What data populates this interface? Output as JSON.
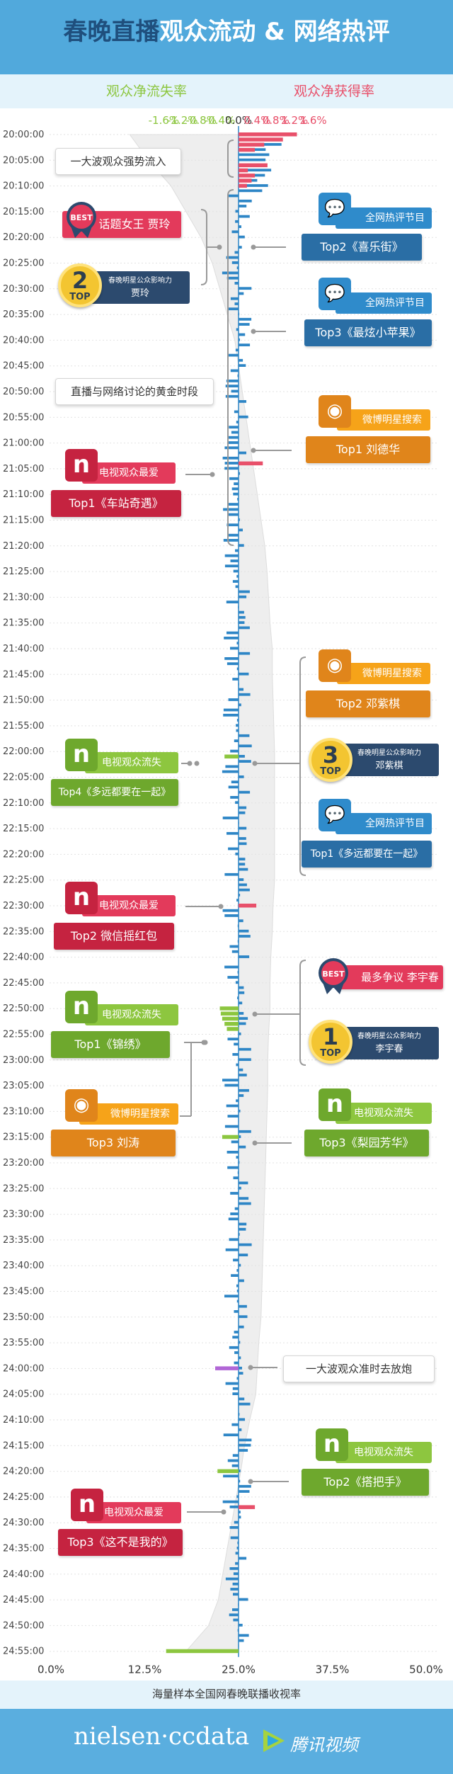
{
  "header": {
    "title_part1": "春晚直播",
    "title_part2": "观众流动 & 网络热评",
    "loss_label": "观众净流失率",
    "gain_label": "观众净获得率"
  },
  "footer": {
    "axis_label": "海量样本全国网春晚联播收视率",
    "nielsen_logo": "nielsen·ccdata",
    "tencent_logo": "腾讯视频"
  },
  "colors": {
    "header_bg": "#51a9dc",
    "loss_bar": "#8cc63f",
    "gain_bar": "#e8506a",
    "rating_bar": "#2e86c6",
    "rating_area": "#eeeeee",
    "purple_bar": "#b166d6"
  },
  "annotations": {
    "wave_in": "一大波观众强势流入",
    "golden_period": "直播与网络讨论的黄金时段",
    "wave_out": "一大波观众准时去放炮",
    "best_topic_label": "话题女王 贾玲",
    "best_topic_badge": "BEST",
    "top2_star_title": "春晚明星公众影响力",
    "top2_star_name": "贾玲",
    "top2_star_num": "2",
    "web_comment_title1": "全网热评节目",
    "web_comment_top2": "Top2《喜乐街》",
    "web_comment_title2": "全网热评节目",
    "web_comment_top3": "Top3《最炫小苹果》",
    "weibo_search_title1": "微博明星搜索",
    "weibo_search_top1": "Top1 刘德华",
    "tv_fav_title1": "电视观众最爱",
    "tv_fav_top1": "Top1《车站奇遇》",
    "weibo_search_title2": "微博明星搜索",
    "weibo_search_top2": "Top2 邓紫棋",
    "tv_loss_title1": "电视观众流失",
    "tv_loss_top4": "Top4《多远都要在一起》",
    "top3_star_title": "春晚明星公众影响力",
    "top3_star_name": "邓紫棋",
    "top3_star_num": "3",
    "web_comment_title3": "全网热评节目",
    "web_comment_top1": "Top1《多远都要在一起》",
    "tv_fav_title2": "电视观众最爱",
    "tv_fav_top2": "Top2 微信摇红包",
    "best_controversy_label": "最多争议 李宇春",
    "best_controversy_badge": "BEST",
    "tv_loss_title2": "电视观众流失",
    "tv_loss_top1": "Top1《锦绣》",
    "top1_star_title": "春晚明星公众影响力",
    "top1_star_name": "李宇春",
    "top1_star_num": "1",
    "weibo_search_title3": "微博明星搜索",
    "weibo_search_top3": "Top3 刘涛",
    "tv_loss_title3": "电视观众流失",
    "tv_loss_top3": "Top3《梨园芳华》",
    "tv_loss_title4": "电视观众流失",
    "tv_loss_top2": "Top2《搭把手》",
    "tv_fav_title3": "电视观众最爱",
    "tv_fav_top3": "Top3《这不是我的》",
    "top_word": "TOP",
    "icon_n": "n"
  },
  "chart_data": {
    "type": "bar",
    "x_flow_ticks": [
      "-1.6%",
      "-1.2%",
      "-0.8%",
      "-0.4%",
      "0.0%",
      "0.4%",
      "0.8%",
      "1.2%",
      "1.6%"
    ],
    "x_flow_range": [
      -1.6,
      1.6
    ],
    "x_rating_ticks": [
      "0.0%",
      "12.5%",
      "25.0%",
      "37.5%",
      "50.0%"
    ],
    "x_rating_range": [
      0,
      50
    ],
    "time_labels": [
      "20:00:00",
      "20:05:00",
      "20:10:00",
      "20:15:00",
      "20:20:00",
      "20:25:00",
      "20:30:00",
      "20:35:00",
      "20:40:00",
      "20:45:00",
      "20:50:00",
      "20:55:00",
      "21:00:00",
      "21:05:00",
      "21:10:00",
      "21:15:00",
      "21:20:00",
      "21:25:00",
      "21:30:00",
      "21:35:00",
      "21:40:00",
      "21:45:00",
      "21:50:00",
      "21:55:00",
      "22:00:00",
      "22:05:00",
      "22:10:00",
      "22:15:00",
      "22:20:00",
      "22:25:00",
      "22:30:00",
      "22:35:00",
      "22:40:00",
      "22:45:00",
      "22:50:00",
      "22:55:00",
      "23:00:00",
      "23:05:00",
      "23:10:00",
      "23:15:00",
      "23:20:00",
      "23:25:00",
      "23:30:00",
      "23:35:00",
      "23:40:00",
      "23:45:00",
      "23:50:00",
      "23:55:00",
      "24:00:00",
      "24:05:00",
      "24:10:00",
      "24:15:00",
      "24:20:00",
      "24:25:00",
      "24:30:00",
      "24:35:00",
      "24:40:00",
      "24:45:00",
      "24:50:00",
      "24:55:00"
    ],
    "rating_curve": [
      10.5,
      13,
      16,
      18,
      20,
      21.5,
      22.5,
      23.5,
      24.5,
      25,
      25.5,
      26,
      26.5,
      27,
      27.5,
      28,
      28.5,
      28.8,
      29,
      29.2,
      29.5,
      29.5,
      29.6,
      29.7,
      29.8,
      29.8,
      29.8,
      29.8,
      29.8,
      29.8,
      29.6,
      29.5,
      29.3,
      29.2,
      29.2,
      29,
      28.9,
      28.9,
      28.8,
      28.7,
      28.6,
      28.5,
      28.4,
      28.3,
      28.2,
      28.1,
      28.0,
      27.7,
      27.5,
      27.3,
      26.5,
      25.8,
      25.3,
      24.7,
      24.1,
      23.5,
      22.9,
      22.3,
      21.0,
      18.0
    ],
    "gain_samples": [
      {
        "time": "20:00:00",
        "value": 1.25
      },
      {
        "time": "20:01:00",
        "value": 0.95
      },
      {
        "time": "20:02:00",
        "value": 0.55
      },
      {
        "time": "20:03:00",
        "value": 0.35
      },
      {
        "time": "20:06:00",
        "value": 0.62
      },
      {
        "time": "20:07:00",
        "value": 0.2
      },
      {
        "time": "20:08:00",
        "value": 0.35
      },
      {
        "time": "20:09:00",
        "value": 0.28
      },
      {
        "time": "20:10:00",
        "value": 0.18
      },
      {
        "time": "21:04:00",
        "value": 0.52
      },
      {
        "time": "22:30:00",
        "value": 0.38
      },
      {
        "time": "24:27:00",
        "value": 0.35
      }
    ],
    "loss_samples": [
      {
        "time": "22:01:00",
        "value": -0.3
      },
      {
        "time": "22:50:00",
        "value": -0.4
      },
      {
        "time": "22:51:00",
        "value": -0.38
      },
      {
        "time": "22:52:00",
        "value": -0.35
      },
      {
        "time": "22:53:00",
        "value": -0.3
      },
      {
        "time": "22:54:00",
        "value": -0.25
      },
      {
        "time": "23:15:00",
        "value": -0.35
      },
      {
        "time": "24:20:00",
        "value": -0.45
      },
      {
        "time": "24:55:00",
        "value": -1.55
      }
    ],
    "purple_samples": [
      {
        "time": "24:00:00",
        "value": -0.5
      }
    ]
  }
}
